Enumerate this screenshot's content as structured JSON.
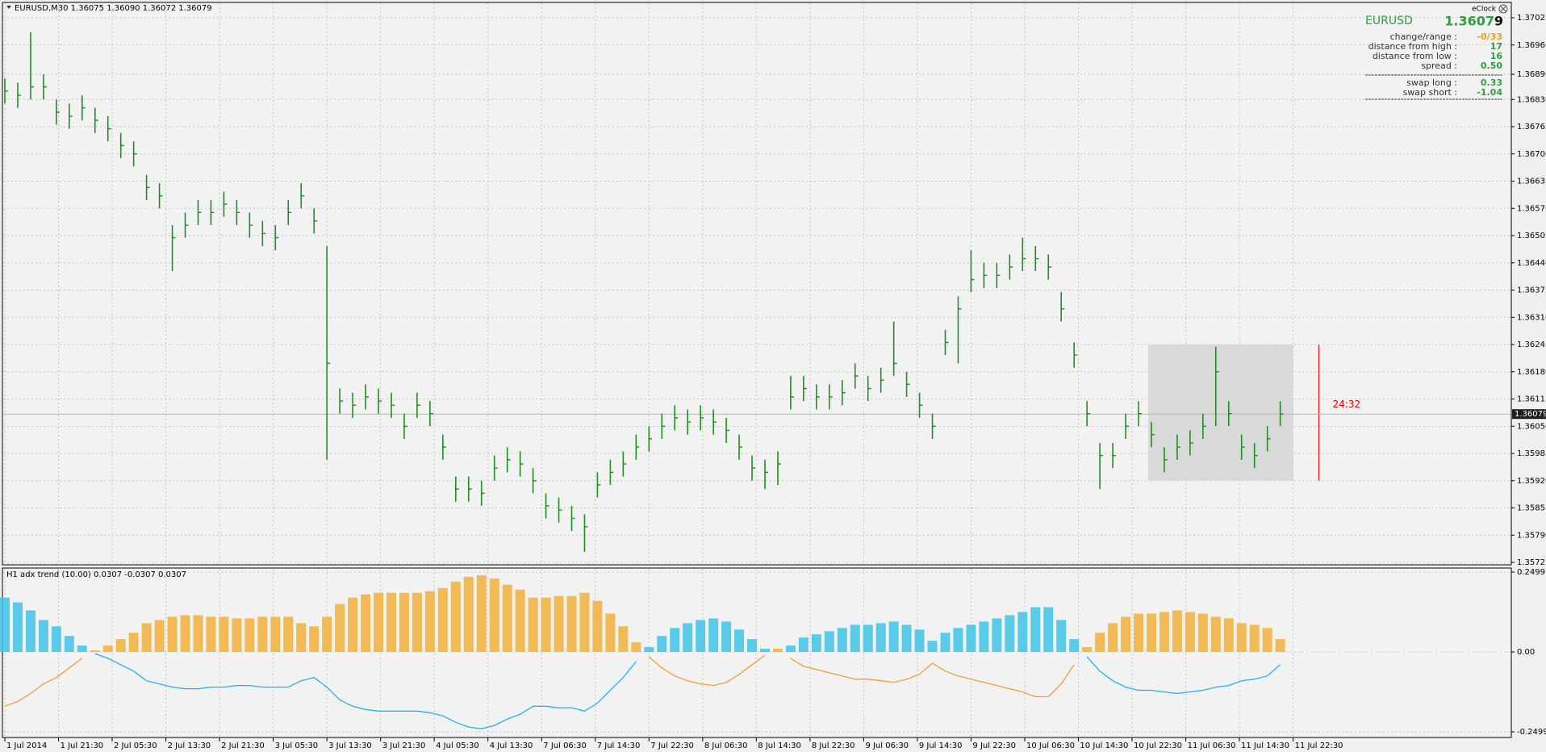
{
  "chart_data": [
    {
      "type": "ohlc",
      "title": "EURUSD,M30 1.36075 1.36090 1.36072 1.36079",
      "color": "#1f8f1f",
      "grid": true,
      "xlim": [
        0,
        117
      ],
      "ylim": [
        1.35725,
        1.37025
      ],
      "yticks": [
        1.37025,
        {
          "value": 1.3696,
          "label": "1.36960"
        },
        {
          "value": 1.3689,
          "label": "1.36890"
        },
        {
          "value": 1.3683,
          "label": "1.36830"
        },
        1.36765,
        {
          "value": 1.367,
          "label": "1.36700"
        },
        1.36635,
        {
          "value": 1.3657,
          "label": "1.36570"
        },
        1.36505,
        {
          "value": 1.3644,
          "label": "1.36440"
        },
        1.36375,
        {
          "value": 1.3631,
          "label": "1.36310"
        },
        1.36245,
        {
          "value": 1.3618,
          "label": "1.36180"
        },
        1.36115,
        {
          "value": 1.3605,
          "label": "1.36050"
        },
        1.35985,
        {
          "value": 1.3592,
          "label": "1.35920"
        },
        1.35855,
        {
          "value": 1.3579,
          "label": "1.35790"
        },
        1.35725
      ],
      "current_price": 1.36079,
      "high": [
        1.3688,
        1.3687,
        1.3699,
        1.3689,
        1.3683,
        1.3682,
        1.3684,
        1.3681,
        1.3679,
        1.3675,
        1.3673,
        1.3665,
        1.3663,
        1.3653,
        1.3656,
        1.3659,
        1.3659,
        1.3661,
        1.3659,
        1.3656,
        1.3654,
        1.3653,
        1.3659,
        1.3663,
        1.3657,
        1.3648,
        1.3614,
        1.3613,
        1.3615,
        1.3614,
        1.3613,
        1.3608,
        1.3613,
        1.3611,
        1.3603,
        1.3593,
        1.3593,
        1.3592,
        1.3598,
        1.36,
        1.3599,
        1.3595,
        1.3589,
        1.3588,
        1.3586,
        1.3584,
        1.3594,
        1.3597,
        1.3599,
        1.3603,
        1.3605,
        1.3608,
        1.361,
        1.3609,
        1.361,
        1.3609,
        1.3607,
        1.3603,
        1.3598,
        1.3597,
        1.3599,
        1.3617,
        1.3617,
        1.3615,
        1.3615,
        1.3616,
        1.362,
        1.3617,
        1.3619,
        1.363,
        1.3618,
        1.3613,
        1.3608,
        1.3628,
        1.3636,
        1.3647,
        1.3644,
        1.3644,
        1.3646,
        1.365,
        1.3648,
        1.3646,
        1.3637,
        1.3625,
        1.3611,
        1.3601,
        1.3601,
        1.3608,
        1.3611,
        1.3606,
        1.36,
        1.3603,
        1.3604,
        1.3608,
        1.3624,
        1.3611,
        1.3603,
        1.3601,
        1.3605,
        1.3611
      ],
      "low": [
        1.3682,
        1.3681,
        1.3683,
        1.3683,
        1.3677,
        1.3676,
        1.3678,
        1.3675,
        1.3673,
        1.3669,
        1.3667,
        1.3659,
        1.3657,
        1.3642,
        1.365,
        1.3653,
        1.3653,
        1.3655,
        1.3653,
        1.365,
        1.3648,
        1.3647,
        1.3653,
        1.3657,
        1.3651,
        1.3597,
        1.3608,
        1.3607,
        1.3609,
        1.3608,
        1.3607,
        1.3602,
        1.3607,
        1.3605,
        1.3597,
        1.3587,
        1.3587,
        1.3586,
        1.3592,
        1.3594,
        1.3593,
        1.3589,
        1.3583,
        1.3582,
        1.358,
        1.3575,
        1.3588,
        1.3591,
        1.3593,
        1.3597,
        1.3599,
        1.3602,
        1.3604,
        1.3603,
        1.3604,
        1.3603,
        1.3601,
        1.3597,
        1.3592,
        1.359,
        1.3591,
        1.3609,
        1.3611,
        1.3609,
        1.3609,
        1.361,
        1.3614,
        1.3611,
        1.3613,
        1.3617,
        1.3612,
        1.3607,
        1.3602,
        1.3622,
        1.362,
        1.3637,
        1.3638,
        1.3638,
        1.364,
        1.3642,
        1.3642,
        1.364,
        1.363,
        1.3619,
        1.3605,
        1.359,
        1.3595,
        1.3602,
        1.3605,
        1.36,
        1.3594,
        1.3597,
        1.3598,
        1.3602,
        1.3605,
        1.3605,
        1.3597,
        1.3595,
        1.3599,
        1.3605
      ],
      "close": [
        1.3685,
        1.3684,
        1.3686,
        1.3686,
        1.368,
        1.3679,
        1.3681,
        1.3678,
        1.3676,
        1.3672,
        1.367,
        1.3662,
        1.366,
        1.365,
        1.3653,
        1.3656,
        1.3656,
        1.3658,
        1.3656,
        1.3653,
        1.3651,
        1.365,
        1.3656,
        1.366,
        1.3654,
        1.362,
        1.3611,
        1.361,
        1.3612,
        1.3611,
        1.361,
        1.3605,
        1.361,
        1.3608,
        1.36,
        1.359,
        1.359,
        1.3589,
        1.3595,
        1.3597,
        1.3596,
        1.3592,
        1.3586,
        1.3585,
        1.3583,
        1.3581,
        1.3591,
        1.3594,
        1.3596,
        1.36,
        1.3602,
        1.3605,
        1.3607,
        1.3606,
        1.3607,
        1.3606,
        1.3604,
        1.36,
        1.3595,
        1.3594,
        1.3596,
        1.3612,
        1.3614,
        1.3612,
        1.3612,
        1.3613,
        1.3617,
        1.3614,
        1.3616,
        1.362,
        1.3615,
        1.361,
        1.3605,
        1.3625,
        1.3633,
        1.364,
        1.3641,
        1.3641,
        1.3643,
        1.3645,
        1.3645,
        1.3643,
        1.3633,
        1.3622,
        1.3608,
        1.3598,
        1.3598,
        1.3605,
        1.3608,
        1.3603,
        1.3597,
        1.36,
        1.3601,
        1.3605,
        1.3618,
        1.3608,
        1.36,
        1.3598,
        1.3602,
        1.36079
      ],
      "range_box": {
        "xlim": [
          88.75,
          100
        ],
        "ylim": [
          1.3592,
          1.36245
        ],
        "color": "#d9d9d9"
      },
      "timer": {
        "label": "24:32",
        "x": 102,
        "color": "#e00000"
      }
    },
    {
      "type": "histogram",
      "title": "H1 adx trend (10.00) 0.0307 -0.0307 0.0307",
      "xlim": [
        0,
        117
      ],
      "ylim": [
        -0.2499,
        0.2499
      ],
      "yticks": [
        0.2499,
        {
          "value": 0,
          "label": "0.00"
        },
        -0.2499
      ],
      "xticks": [
        {
          "value": 0,
          "label": "1 Jul 2014"
        },
        {
          "value": 4.17,
          "label": "1 Jul 21:30"
        },
        {
          "value": 8.33,
          "label": "2 Jul 05:30"
        },
        {
          "value": 12.5,
          "label": "2 Jul 13:30"
        },
        {
          "value": 16.67,
          "label": "2 Jul 21:30"
        },
        {
          "value": 20.83,
          "label": "3 Jul 05:30"
        },
        {
          "value": 25,
          "label": "3 Jul 13:30"
        },
        {
          "value": 29.17,
          "label": "3 Jul 21:30"
        },
        {
          "value": 33.33,
          "label": "4 Jul 05:30"
        },
        {
          "value": 37.5,
          "label": "4 Jul 13:30"
        },
        {
          "value": 41.67,
          "label": "7 Jul 06:30"
        },
        {
          "value": 45.83,
          "label": "7 Jul 14:30"
        },
        {
          "value": 50,
          "label": "7 Jul 22:30"
        },
        {
          "value": 54.17,
          "label": "8 Jul 06:30"
        },
        {
          "value": 58.33,
          "label": "8 Jul 14:30"
        },
        {
          "value": 62.5,
          "label": "8 Jul 22:30"
        },
        {
          "value": 66.67,
          "label": "9 Jul 06:30"
        },
        {
          "value": 70.83,
          "label": "9 Jul 14:30"
        },
        {
          "value": 75,
          "label": "9 Jul 22:30"
        },
        {
          "value": 79.17,
          "label": "10 Jul 06:30"
        },
        {
          "value": 83.33,
          "label": "10 Jul 14:30"
        },
        {
          "value": 87.5,
          "label": "10 Jul 22:30"
        },
        {
          "value": 91.67,
          "label": "11 Jul 06:30"
        },
        {
          "value": 95.83,
          "label": "11 Jul 14:30"
        },
        {
          "value": 100,
          "label": "11 Jul 22:30"
        }
      ],
      "series": [
        {
          "color": "#3ec4e6",
          "values": [
            0.17,
            0.155,
            0.13,
            0.1,
            0.08,
            0.05,
            0.02,
            null,
            null,
            null,
            null,
            null,
            null,
            null,
            null,
            null,
            null,
            null,
            null,
            null,
            null,
            null,
            null,
            null,
            null,
            null,
            null,
            null,
            null,
            null,
            null,
            null,
            null,
            null,
            null,
            null,
            null,
            null,
            null,
            null,
            null,
            null,
            null,
            null,
            null,
            null,
            null,
            null,
            null,
            null,
            0.015,
            0.05,
            0.075,
            0.09,
            0.1,
            0.105,
            0.095,
            0.07,
            0.04,
            0.01,
            null,
            0.02,
            0.045,
            0.055,
            0.065,
            0.075,
            0.085,
            0.085,
            0.09,
            0.095,
            0.085,
            0.07,
            0.035,
            0.06,
            0.075,
            0.085,
            0.095,
            0.105,
            0.115,
            0.125,
            0.14,
            0.14,
            0.1,
            0.04,
            null,
            null,
            null,
            null,
            null,
            null,
            null,
            null,
            null,
            null,
            null,
            null,
            null,
            null,
            null,
            null
          ]
        },
        {
          "color": "#f2b03a",
          "values": [
            null,
            null,
            null,
            null,
            null,
            null,
            null,
            0.005,
            0.02,
            0.04,
            0.06,
            0.09,
            0.1,
            0.11,
            0.115,
            0.115,
            0.11,
            0.11,
            0.105,
            0.105,
            0.11,
            0.11,
            0.11,
            0.09,
            0.08,
            0.11,
            0.15,
            0.17,
            0.18,
            0.185,
            0.185,
            0.185,
            0.185,
            0.19,
            0.2,
            0.22,
            0.235,
            0.24,
            0.23,
            0.21,
            0.195,
            0.17,
            0.17,
            0.175,
            0.175,
            0.185,
            0.16,
            0.12,
            0.08,
            0.03,
            null,
            null,
            null,
            null,
            null,
            null,
            null,
            null,
            null,
            null,
            0.01,
            null,
            null,
            null,
            null,
            null,
            null,
            null,
            null,
            null,
            null,
            null,
            null,
            null,
            null,
            null,
            null,
            null,
            null,
            null,
            null,
            null,
            null,
            null,
            0.015,
            0.06,
            0.09,
            0.11,
            0.12,
            0.12,
            0.125,
            0.13,
            0.125,
            0.12,
            0.11,
            0.105,
            0.09,
            0.085,
            0.075,
            0.04
          ]
        }
      ],
      "lines": [
        {
          "color": "#1fb2ee",
          "values": [
            null,
            null,
            null,
            null,
            null,
            null,
            null,
            -0.005,
            -0.02,
            -0.04,
            -0.06,
            -0.09,
            -0.1,
            -0.11,
            -0.115,
            -0.115,
            -0.11,
            -0.11,
            -0.105,
            -0.105,
            -0.11,
            -0.11,
            -0.11,
            -0.09,
            -0.08,
            -0.11,
            -0.15,
            -0.17,
            -0.18,
            -0.185,
            -0.185,
            -0.185,
            -0.185,
            -0.19,
            -0.2,
            -0.22,
            -0.235,
            -0.24,
            -0.23,
            -0.21,
            -0.195,
            -0.17,
            -0.17,
            -0.175,
            -0.175,
            -0.185,
            -0.16,
            -0.12,
            -0.08,
            -0.03,
            null,
            null,
            null,
            null,
            null,
            null,
            null,
            null,
            null,
            null,
            -0.01,
            null,
            null,
            null,
            null,
            null,
            null,
            null,
            null,
            null,
            null,
            null,
            null,
            null,
            null,
            null,
            null,
            null,
            null,
            null,
            null,
            null,
            null,
            null,
            -0.015,
            -0.06,
            -0.09,
            -0.11,
            -0.12,
            -0.12,
            -0.125,
            -0.13,
            -0.125,
            -0.12,
            -0.11,
            -0.105,
            -0.09,
            -0.085,
            -0.075,
            -0.04
          ]
        },
        {
          "color": "#f0a030",
          "values": [
            -0.17,
            -0.155,
            -0.13,
            -0.1,
            -0.08,
            -0.05,
            -0.02,
            null,
            null,
            null,
            null,
            null,
            null,
            null,
            null,
            null,
            null,
            null,
            null,
            null,
            null,
            null,
            null,
            null,
            null,
            null,
            null,
            null,
            null,
            null,
            null,
            null,
            null,
            null,
            null,
            null,
            null,
            null,
            null,
            null,
            null,
            null,
            null,
            null,
            null,
            null,
            null,
            null,
            null,
            null,
            -0.015,
            -0.05,
            -0.075,
            -0.09,
            -0.1,
            -0.105,
            -0.095,
            -0.07,
            -0.04,
            -0.01,
            null,
            -0.02,
            -0.045,
            -0.055,
            -0.065,
            -0.075,
            -0.085,
            -0.085,
            -0.09,
            -0.095,
            -0.085,
            -0.07,
            -0.035,
            -0.06,
            -0.075,
            -0.085,
            -0.095,
            -0.105,
            -0.115,
            -0.125,
            -0.14,
            -0.14,
            -0.1,
            -0.04,
            null,
            null,
            null,
            null,
            null,
            null,
            null,
            null,
            null,
            null,
            null,
            null,
            null,
            null,
            null,
            null
          ]
        }
      ]
    }
  ],
  "info_panel": {
    "title": "eClock",
    "symbol": "EURUSD",
    "price_main": "1.3607",
    "price_last": "9",
    "rows": [
      [
        "change/range :",
        "-0/33"
      ],
      [
        "distance from high :",
        "17"
      ],
      [
        "distance from low :",
        "16"
      ],
      [
        "spread :",
        "0.50"
      ],
      [
        "swap long :",
        "0.33"
      ],
      [
        "swap short :",
        "-1.04"
      ]
    ]
  }
}
